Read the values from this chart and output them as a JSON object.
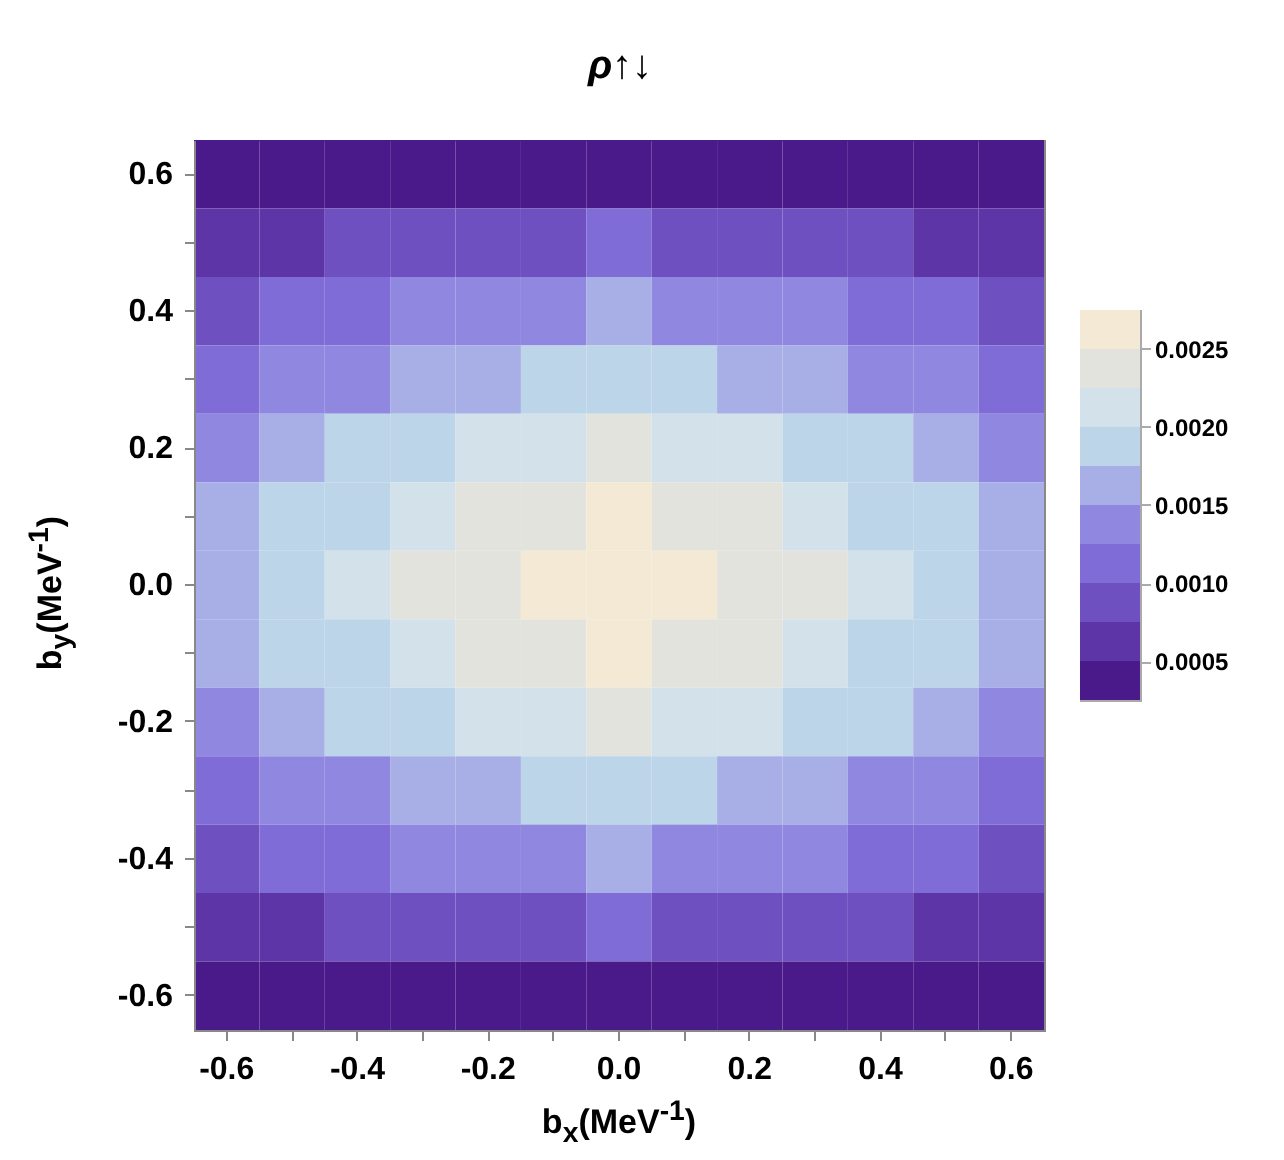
{
  "chart_data": {
    "type": "heatmap",
    "title": "ρ↑↓",
    "xlabel": "b$_{x}$(MeV$^{-1}$)",
    "ylabel": "b$_{y}$(MeV$^{-1}$)",
    "categories": [
      "-0.6",
      null,
      "-0.4",
      null,
      "-0.2",
      null,
      "0.0",
      null,
      "0.2",
      null,
      "0.4",
      null,
      "0.6"
    ],
    "y_categories": [
      "0.6",
      null,
      "0.4",
      null,
      "0.2",
      null,
      "0.0",
      null,
      "-0.2",
      null,
      "-0.4",
      null,
      "-0.6"
    ],
    "cells": [
      [
        0.00027,
        0.00031,
        0.00035,
        0.00038,
        0.00041,
        0.00043,
        0.00045,
        0.00043,
        0.00041,
        0.00038,
        0.00035,
        0.00031,
        0.00027
      ],
      [
        0.00059,
        0.00069,
        0.00077,
        0.00085,
        0.00091,
        0.00096,
        0.001,
        0.00096,
        0.00091,
        0.00085,
        0.00077,
        0.00069,
        0.00059
      ],
      [
        0.00089,
        0.00103,
        0.00115,
        0.00128,
        0.00136,
        0.00144,
        0.0015,
        0.00144,
        0.00136,
        0.00128,
        0.00115,
        0.00103,
        0.00089
      ],
      [
        0.00113,
        0.0013,
        0.00146,
        0.00162,
        0.00172,
        0.00183,
        0.0019,
        0.00183,
        0.00172,
        0.00162,
        0.00146,
        0.0013,
        0.00113
      ],
      [
        0.00136,
        0.00158,
        0.00176,
        0.00196,
        0.00209,
        0.00221,
        0.0023,
        0.00221,
        0.00209,
        0.00196,
        0.00176,
        0.00158,
        0.00136
      ],
      [
        0.00151,
        0.00175,
        0.00196,
        0.00217,
        0.00231,
        0.00246,
        0.00255,
        0.00246,
        0.00231,
        0.00217,
        0.00196,
        0.00175,
        0.00151
      ],
      [
        0.0016,
        0.00185,
        0.00207,
        0.0023,
        0.00245,
        0.0026,
        0.0027,
        0.0026,
        0.00245,
        0.0023,
        0.00207,
        0.00185,
        0.0016
      ],
      [
        0.00151,
        0.00175,
        0.00196,
        0.00217,
        0.00231,
        0.00246,
        0.00255,
        0.00246,
        0.00231,
        0.00217,
        0.00196,
        0.00175,
        0.00151
      ],
      [
        0.00136,
        0.00158,
        0.00176,
        0.00196,
        0.00209,
        0.00221,
        0.0023,
        0.00221,
        0.00209,
        0.00196,
        0.00176,
        0.00158,
        0.00136
      ],
      [
        0.00113,
        0.0013,
        0.00146,
        0.00162,
        0.00172,
        0.00183,
        0.0019,
        0.00183,
        0.00172,
        0.00162,
        0.00146,
        0.0013,
        0.00113
      ],
      [
        0.00089,
        0.00103,
        0.00115,
        0.00128,
        0.00136,
        0.00144,
        0.0015,
        0.00144,
        0.00136,
        0.00128,
        0.00115,
        0.00103,
        0.00089
      ],
      [
        0.00059,
        0.00069,
        0.00077,
        0.00085,
        0.00091,
        0.00096,
        0.001,
        0.00096,
        0.00091,
        0.00085,
        0.00077,
        0.00069,
        0.00059
      ],
      [
        0.00027,
        0.00031,
        0.00035,
        0.00038,
        0.00041,
        0.00043,
        0.00045,
        0.00043,
        0.00041,
        0.00038,
        0.00035,
        0.00031,
        0.00027
      ]
    ],
    "clim": [
      0.00025,
      0.00275
    ],
    "cticks": [
      {
        "value": 0.0005,
        "label": "0.0005"
      },
      {
        "value": 0.001,
        "label": "0.0010"
      },
      {
        "value": 0.0015,
        "label": "0.0015"
      },
      {
        "value": 0.002,
        "label": "0.0020"
      },
      {
        "value": 0.0025,
        "label": "0.0025"
      }
    ],
    "colors": [
      "#4a1a8a",
      "#5d35a6",
      "#6f50c0",
      "#7f6cd6",
      "#9088e0",
      "#a8aee6",
      "#bdd5e8",
      "#d3e1ea",
      "#e3e3dd",
      "#f3e9d4"
    ]
  }
}
